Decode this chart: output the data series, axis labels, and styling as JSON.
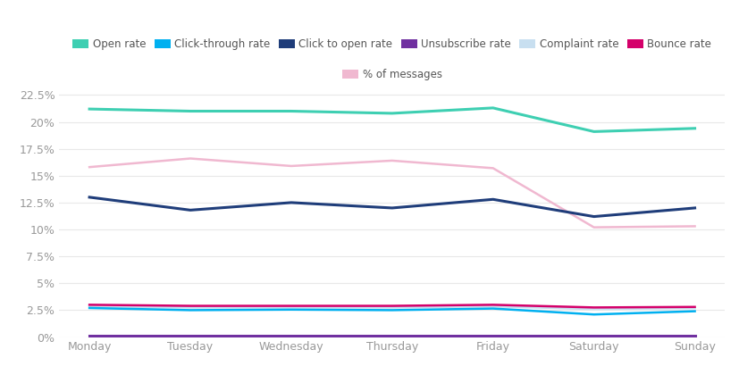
{
  "days": [
    "Monday",
    "Tuesday",
    "Wednesday",
    "Thursday",
    "Friday",
    "Saturday",
    "Sunday"
  ],
  "open_rate": [
    21.2,
    21.0,
    21.0,
    20.8,
    21.3,
    19.1,
    19.4
  ],
  "click_through_rate": [
    2.7,
    2.5,
    2.55,
    2.5,
    2.65,
    2.1,
    2.4
  ],
  "click_to_open_rate": [
    13.0,
    11.8,
    12.5,
    12.0,
    12.8,
    11.2,
    12.0
  ],
  "unsubscribe_rate": [
    0.15,
    0.15,
    0.15,
    0.15,
    0.15,
    0.15,
    0.15
  ],
  "complaint_rate": [
    2.85,
    2.75,
    2.75,
    2.75,
    2.85,
    2.6,
    2.7
  ],
  "bounce_rate": [
    3.0,
    2.9,
    2.9,
    2.9,
    3.0,
    2.75,
    2.8
  ],
  "pct_messages": [
    15.8,
    16.6,
    15.9,
    16.4,
    15.7,
    10.2,
    10.3
  ],
  "colors": {
    "open_rate": "#3ecfb2",
    "click_through_rate": "#00b0f0",
    "click_to_open_rate": "#1f3d7a",
    "unsubscribe_rate": "#7030a0",
    "complaint_rate": "#c8dff0",
    "bounce_rate": "#d4006a",
    "pct_messages": "#f0b8d0"
  },
  "ylim": [
    0,
    23.5
  ],
  "yticks": [
    0,
    2.5,
    5.0,
    7.5,
    10.0,
    12.5,
    15.0,
    17.5,
    20.0,
    22.5
  ],
  "ytick_labels": [
    "0%",
    "2.5%",
    "5%",
    "7.5%",
    "10%",
    "12.5%",
    "15%",
    "17.5%",
    "20%",
    "22.5%"
  ],
  "background_color": "#ffffff",
  "grid_color": "#e8e8e8",
  "legend": [
    {
      "label": "Open rate",
      "color": "#3ecfb2"
    },
    {
      "label": "Click-through rate",
      "color": "#00b0f0"
    },
    {
      "label": "Click to open rate",
      "color": "#1f3d7a"
    },
    {
      "label": "Unsubscribe rate",
      "color": "#7030a0"
    },
    {
      "label": "Complaint rate",
      "color": "#c8dff0"
    },
    {
      "label": "Bounce rate",
      "color": "#d4006a"
    },
    {
      "label": "% of messages",
      "color": "#f0b8d0"
    }
  ]
}
